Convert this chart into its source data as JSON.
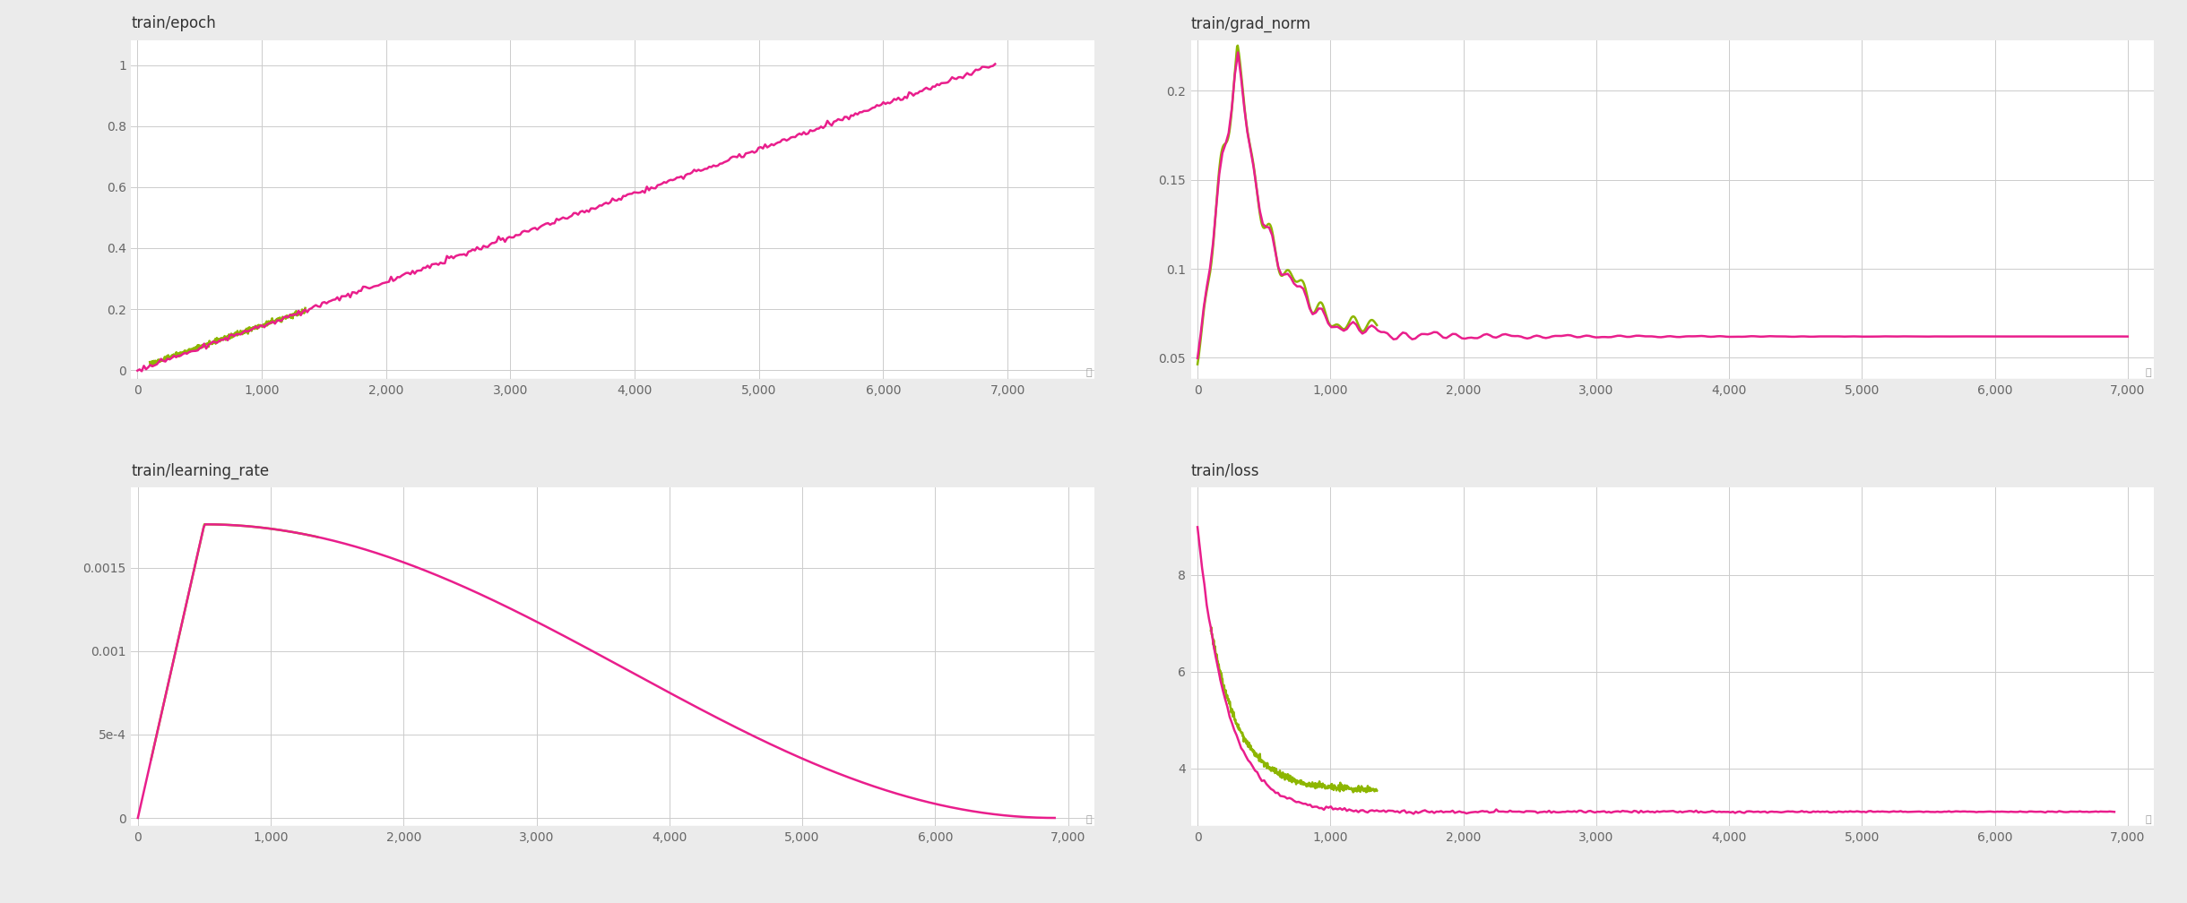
{
  "subplots": [
    {
      "title": "train/epoch",
      "xlim": [
        -50,
        7700
      ],
      "ylim": [
        -0.03,
        1.08
      ],
      "yticks": [
        0,
        0.2,
        0.4,
        0.6,
        0.8,
        1.0
      ],
      "xticks": [
        0,
        1000,
        2000,
        3000,
        4000,
        5000,
        6000,
        7000
      ],
      "extra_xticks": [
        0
      ],
      "series": [
        {
          "color": "#8db600",
          "x_start": 100,
          "x_end": 1350,
          "y_start": 0.02,
          "y_end": 0.195,
          "noise": 0.004
        },
        {
          "color": "#e91e8c",
          "x_start": 0,
          "x_end": 6900,
          "y_start": 0.0,
          "y_end": 1.0,
          "noise": 0.004
        }
      ]
    },
    {
      "title": "train/grad_norm",
      "xlim": [
        -50,
        7200
      ],
      "ylim": [
        0.038,
        0.228
      ],
      "yticks": [
        0.05,
        0.1,
        0.15,
        0.2
      ],
      "xticks": [
        0,
        1000,
        2000,
        3000,
        4000,
        5000,
        6000,
        7000
      ],
      "series": [
        {
          "color": "#8db600",
          "x_end": 1350,
          "peak_x": 300,
          "peak_y": 0.215,
          "start_y": 0.06,
          "asymptote": 0.064,
          "noise_scale": 0.008
        },
        {
          "color": "#e91e8c",
          "x_end": 7000,
          "peak_x": 300,
          "peak_y": 0.215,
          "start_y": 0.06,
          "asymptote": 0.062,
          "noise_scale": 0.006
        }
      ]
    },
    {
      "title": "train/learning_rate",
      "xlim": [
        -50,
        7200
      ],
      "ylim": [
        -5e-05,
        0.00198
      ],
      "yticks": [
        0,
        0.0005,
        0.001,
        0.0015
      ],
      "ytick_labels": [
        "0",
        "5e-4",
        "0.001",
        "0.0015"
      ],
      "xticks": [
        0,
        1000,
        2000,
        3000,
        4000,
        5000,
        6000,
        7000
      ],
      "warmup_end": 500,
      "max_lr": 0.00176,
      "total_steps": 6900,
      "series": [
        {
          "color": "#8db600",
          "x_start": 100,
          "x_end": 1350
        },
        {
          "color": "#e91e8c",
          "x_start": 0,
          "x_end": 6900
        }
      ]
    },
    {
      "title": "train/loss",
      "xlim": [
        -50,
        7200
      ],
      "ylim": [
        2.8,
        9.8
      ],
      "yticks": [
        4,
        6,
        8
      ],
      "xticks": [
        0,
        1000,
        2000,
        3000,
        4000,
        5000,
        6000,
        7000
      ],
      "series": [
        {
          "color": "#8db600",
          "x_start": 100,
          "x_end": 1350,
          "start_val": 8.8,
          "asymptote": 3.55,
          "decay": 0.0045,
          "noise": 0.04
        },
        {
          "color": "#e91e8c",
          "x_start": 0,
          "x_end": 6900,
          "start_val": 9.0,
          "asymptote": 3.1,
          "decay": 0.0045,
          "noise": 0.025
        }
      ]
    }
  ],
  "background_color": "#ebebeb",
  "panel_color": "#ffffff",
  "plot_bg_color": "#ffffff",
  "grid_color": "#cccccc",
  "title_fontsize": 12,
  "tick_fontsize": 10,
  "line_width": 1.8
}
